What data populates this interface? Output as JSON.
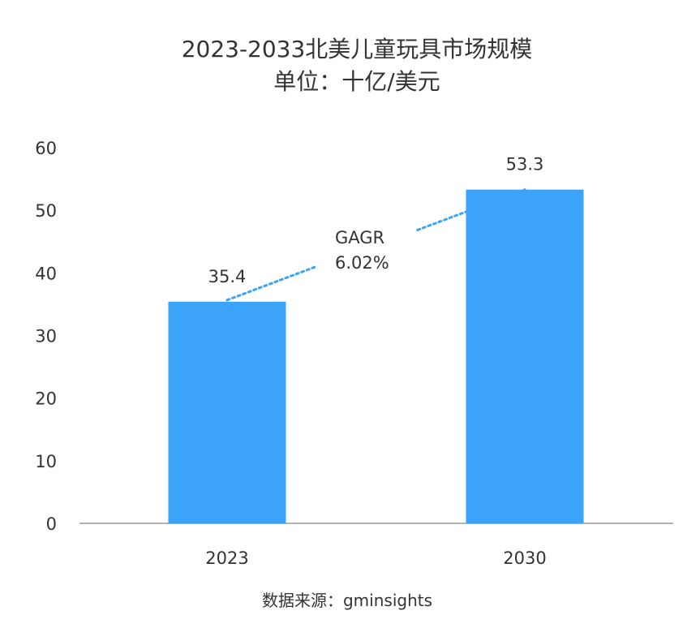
{
  "chart_data": {
    "type": "bar",
    "title": "2023-2033北美儿童玩具市场规模",
    "subtitle": "单位：十亿/美元",
    "categories": [
      "2023",
      "2030"
    ],
    "values": [
      35.4,
      53.3
    ],
    "data_labels": [
      "35.4",
      "53.3"
    ],
    "ylim": [
      0,
      60
    ],
    "yticks": [
      0,
      10,
      20,
      30,
      40,
      50,
      60
    ],
    "xlabel": "",
    "ylabel": "",
    "grid": false,
    "bar_color": "#3BA3F8",
    "annotation": {
      "line1": "GAGR",
      "line2": "6.02%",
      "line_color": "#3BA3F8"
    },
    "source": "数据来源：gminsights"
  }
}
